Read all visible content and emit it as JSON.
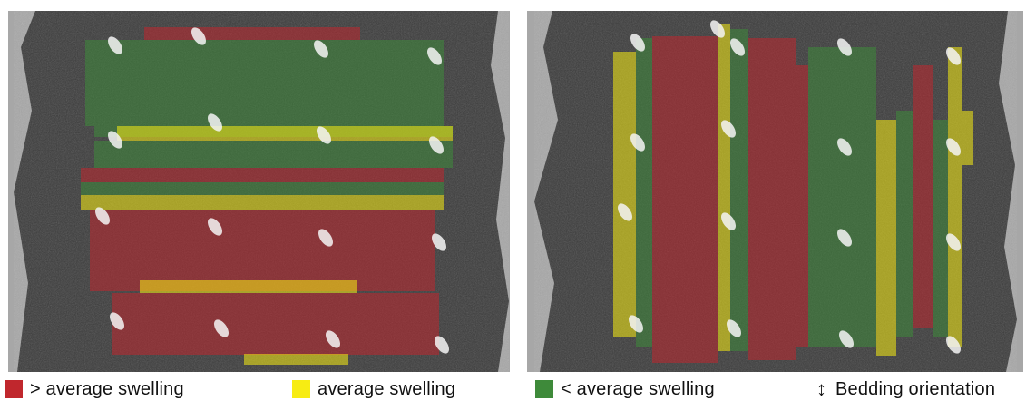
{
  "colors": {
    "above_average": "#c0272d",
    "average": "#f7ec13",
    "below_average": "#3e8a3a",
    "rock_dark": "#2b2b2b",
    "rock_light": "#6d6d6d",
    "background": "#a9a9a9"
  },
  "legend": [
    {
      "key": "above",
      "swatch_color": "#c0272d",
      "label": "> average swelling"
    },
    {
      "key": "average",
      "swatch_color": "#f7ec13",
      "label": "average swelling"
    },
    {
      "key": "below",
      "swatch_color": "#3e8a3a",
      "label": "< average swelling"
    },
    {
      "key": "bedding",
      "icon": "vertical-double-arrow-icon",
      "label": "Bedding orientation"
    }
  ],
  "panels": [
    {
      "name": "left",
      "band_orientation": "horizontal"
    },
    {
      "name": "right",
      "band_orientation": "vertical"
    }
  ]
}
